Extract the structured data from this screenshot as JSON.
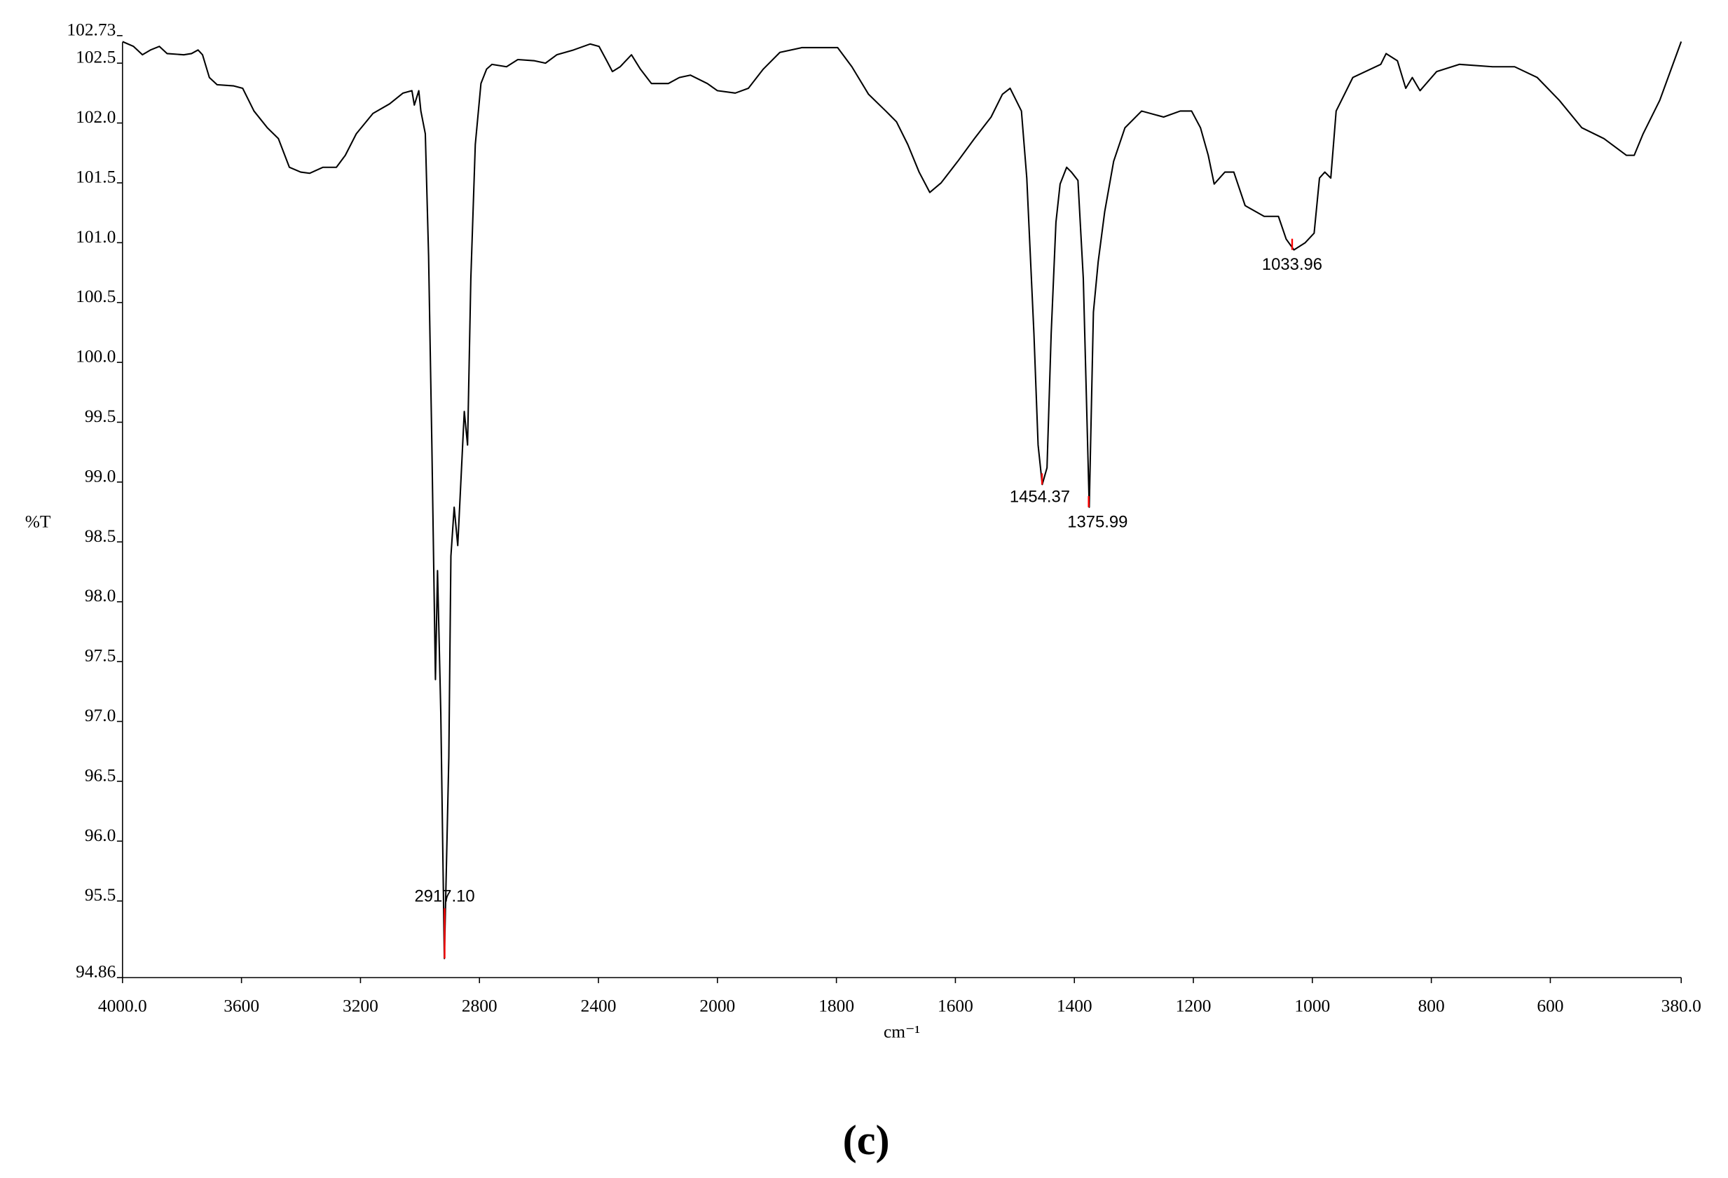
{
  "chart_data": {
    "type": "line",
    "xlabel": "cm⁻¹",
    "ylabel": "%T",
    "panel_label": "(c)",
    "color": "#000000",
    "peak_color": "#ff0000",
    "xlim": [
      4000,
      380
    ],
    "x_scale_break": {
      "at": 2000,
      "factor": 2
    },
    "ylim": [
      94.86,
      102.73
    ],
    "xticks": [
      {
        "value": 4000,
        "label": "4000.0"
      },
      3600,
      3200,
      2800,
      2400,
      2000,
      1800,
      1600,
      1400,
      1200,
      1000,
      800,
      600,
      {
        "value": 380,
        "label": "380.0"
      }
    ],
    "yticks": [
      94.86,
      95.5,
      {
        "value": 96,
        "label": "96.0"
      },
      96.5,
      {
        "value": 97,
        "label": "97.0"
      },
      97.5,
      {
        "value": 98,
        "label": "98.0"
      },
      98.5,
      {
        "value": 99,
        "label": "99.0"
      },
      99.5,
      {
        "value": 100,
        "label": "100.0"
      },
      100.5,
      {
        "value": 101,
        "label": "101.0"
      },
      101.5,
      {
        "value": 102,
        "label": "102.0"
      },
      102.5,
      102.73
    ],
    "x": [
      4000,
      3963,
      3933,
      3906,
      3876,
      3850,
      3794,
      3768,
      3746,
      3731,
      3708,
      3682,
      3626,
      3596,
      3558,
      3513,
      3476,
      3439,
      3401,
      3371,
      3326,
      3281,
      3251,
      3214,
      3158,
      3102,
      3057,
      3027,
      3019,
      3004,
      2997,
      2982,
      2971,
      2960,
      2948,
      2941,
      2930,
      2918,
      2903,
      2896,
      2885,
      2873,
      2862,
      2851,
      2840,
      2829,
      2814,
      2795,
      2776,
      2758,
      2709,
      2671,
      2615,
      2578,
      2540,
      2484,
      2428,
      2398,
      2372,
      2353,
      2327,
      2289,
      2259,
      2222,
      2165,
      2128,
      2091,
      2034,
      2000,
      1970,
      1948,
      1923,
      1895,
      1858,
      1798,
      1774,
      1746,
      1717,
      1699,
      1680,
      1661,
      1643,
      1624,
      1596,
      1568,
      1540,
      1521,
      1508,
      1498,
      1489,
      1480,
      1468,
      1461,
      1454,
      1446,
      1439,
      1431,
      1424,
      1413,
      1405,
      1394,
      1385,
      1375,
      1368,
      1360,
      1349,
      1334,
      1315,
      1287,
      1250,
      1222,
      1203,
      1188,
      1175,
      1165,
      1147,
      1132,
      1113,
      1081,
      1057,
      1044,
      1031,
      1012,
      997,
      988,
      979,
      969,
      960,
      932,
      885,
      876,
      857,
      843,
      832,
      819,
      791,
      753,
      697,
      660,
      622,
      585,
      547,
      510,
      472,
      459,
      444,
      416,
      380
    ],
    "values": [
      102.68,
      102.64,
      102.57,
      102.61,
      102.64,
      102.58,
      102.57,
      102.58,
      102.61,
      102.57,
      102.38,
      102.32,
      102.31,
      102.29,
      102.1,
      101.96,
      101.87,
      101.63,
      101.59,
      101.58,
      101.63,
      101.63,
      101.73,
      101.91,
      102.08,
      102.16,
      102.25,
      102.27,
      102.15,
      102.27,
      102.1,
      101.91,
      100.89,
      99.31,
      97.35,
      98.26,
      97.07,
      95.02,
      96.7,
      98.38,
      98.79,
      98.47,
      99.03,
      99.59,
      99.31,
      100.7,
      101.82,
      102.33,
      102.45,
      102.49,
      102.47,
      102.53,
      102.52,
      102.5,
      102.57,
      102.61,
      102.66,
      102.64,
      102.52,
      102.43,
      102.47,
      102.57,
      102.45,
      102.33,
      102.33,
      102.38,
      102.4,
      102.33,
      102.27,
      102.25,
      102.29,
      102.45,
      102.59,
      102.63,
      102.63,
      102.47,
      102.24,
      102.1,
      102.01,
      101.82,
      101.59,
      101.42,
      101.5,
      101.68,
      101.87,
      102.05,
      102.24,
      102.29,
      102.19,
      102.1,
      101.54,
      100.24,
      99.31,
      98.98,
      99.12,
      100.24,
      101.17,
      101.49,
      101.63,
      101.59,
      101.52,
      100.7,
      98.79,
      100.42,
      100.84,
      101.26,
      101.68,
      101.96,
      102.1,
      102.05,
      102.1,
      102.1,
      101.96,
      101.73,
      101.49,
      101.59,
      101.59,
      101.31,
      101.22,
      101.22,
      101.03,
      100.94,
      101.0,
      101.08,
      101.54,
      101.59,
      101.54,
      102.1,
      102.38,
      102.49,
      102.58,
      102.52,
      102.29,
      102.38,
      102.27,
      102.43,
      102.49,
      102.47,
      102.47,
      102.38,
      102.19,
      101.96,
      101.87,
      101.73,
      101.73,
      101.91,
      102.19,
      102.68
    ],
    "peaks": {
      "x": [
        2917.1,
        1454.37,
        1375.99,
        1033.96
      ],
      "values": [
        95.02,
        98.98,
        98.79,
        100.94
      ],
      "labels": [
        "2917.10",
        "1454.37",
        "1375.99",
        "1033.96"
      ]
    }
  }
}
